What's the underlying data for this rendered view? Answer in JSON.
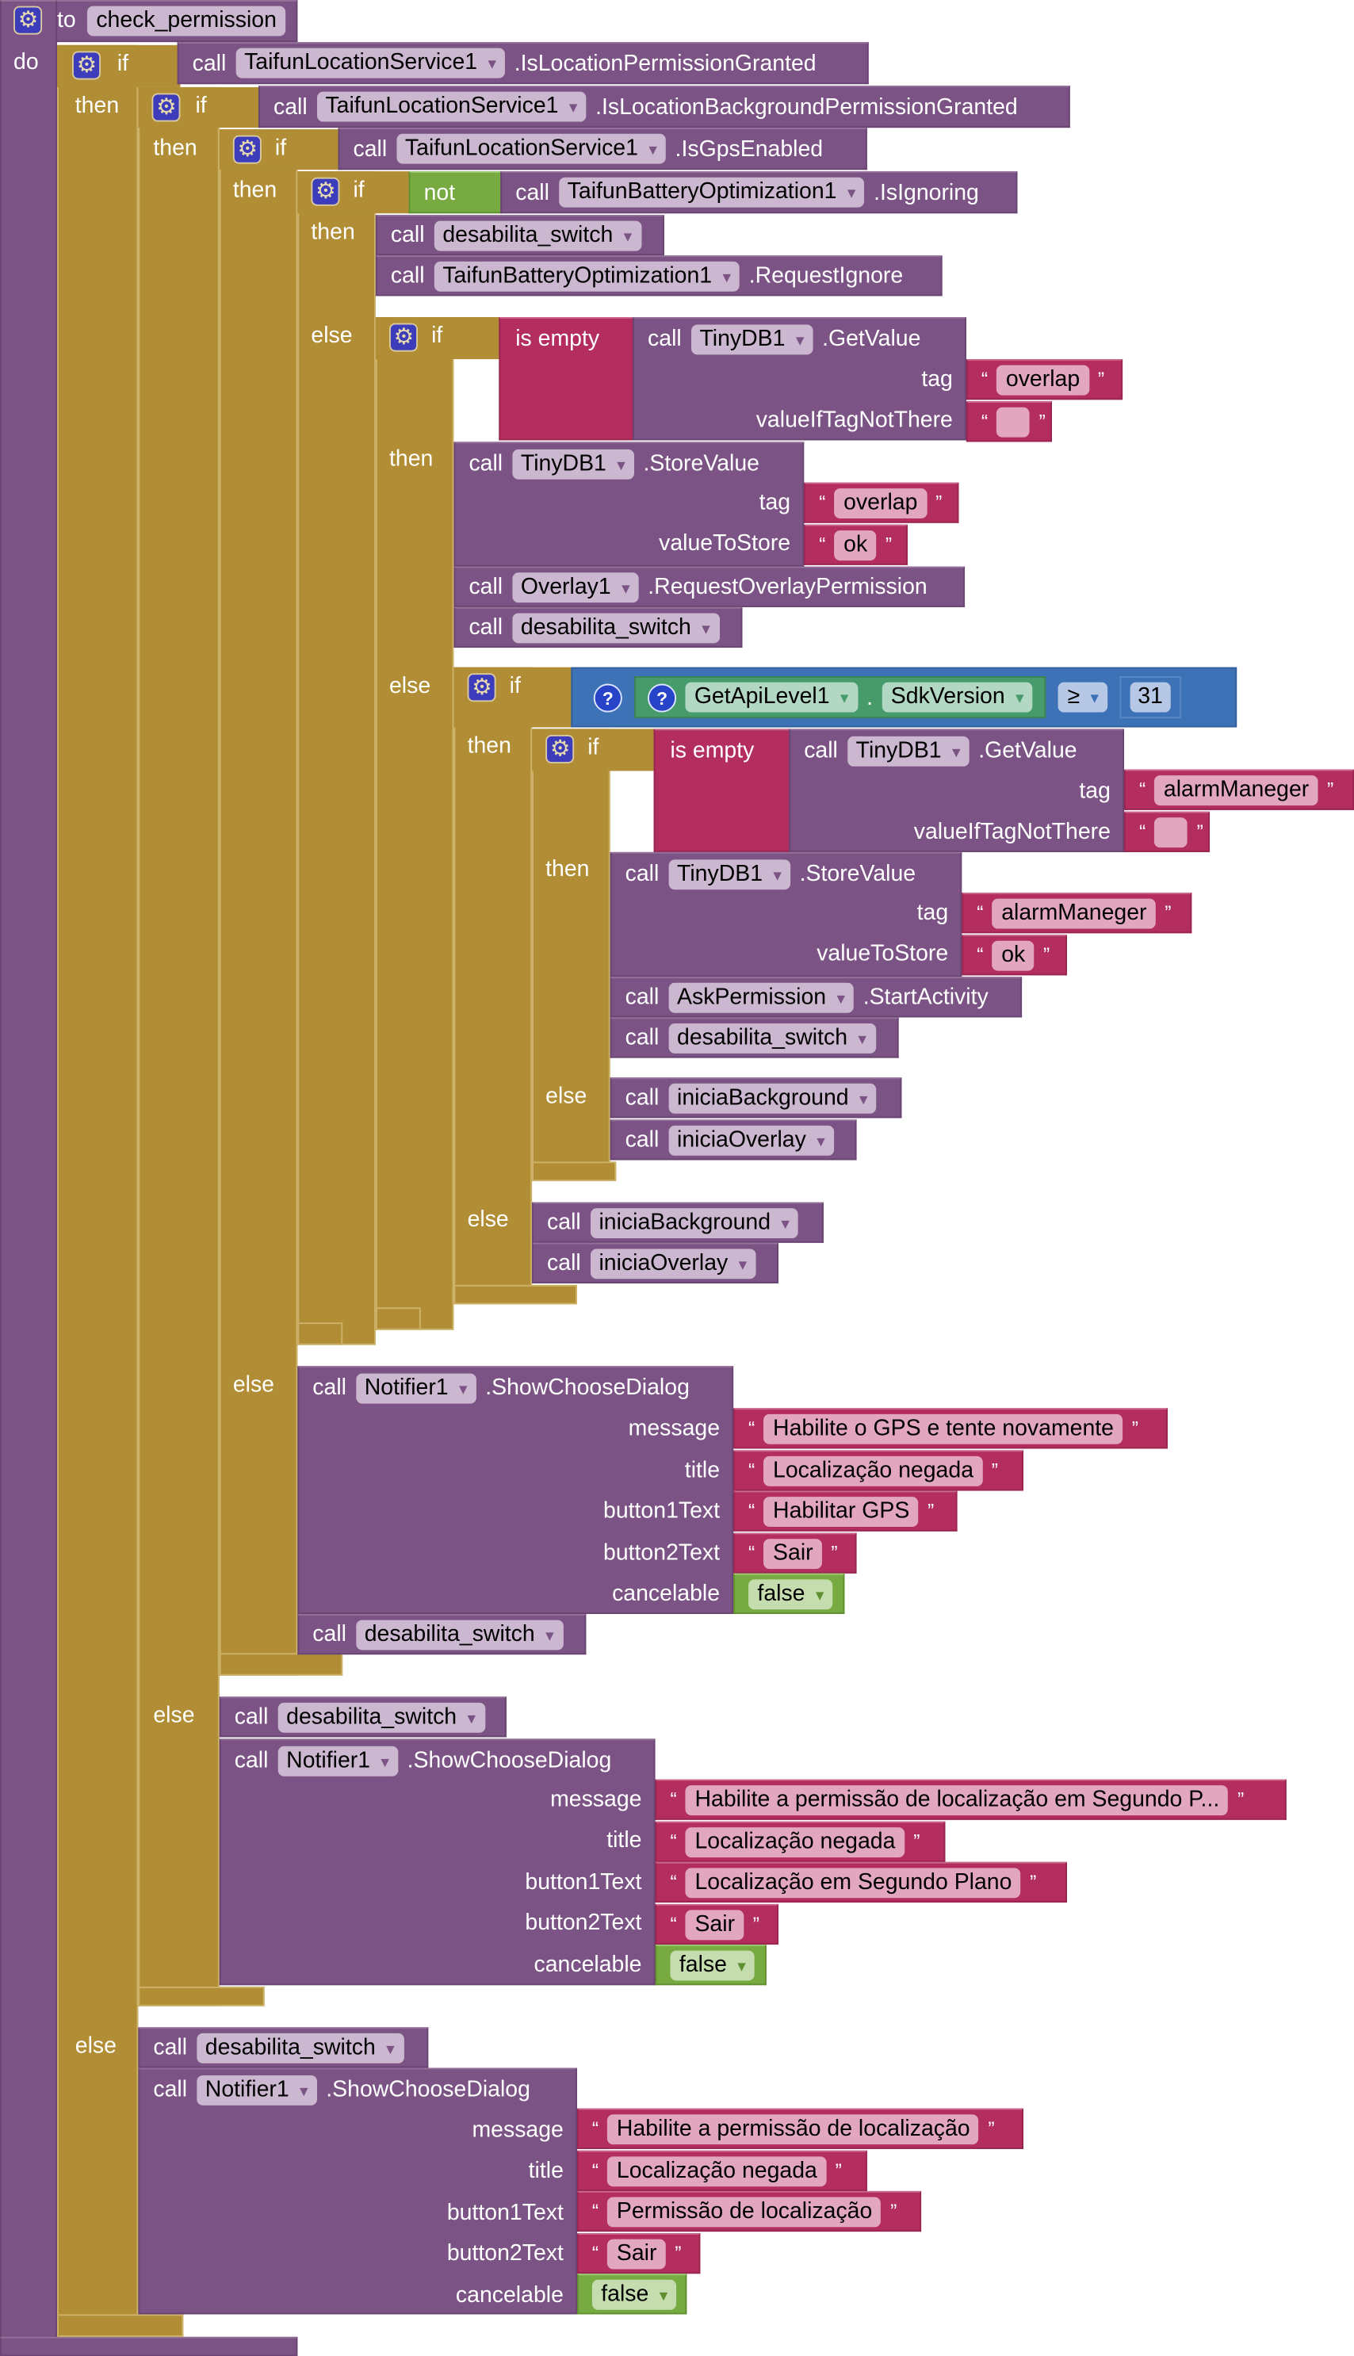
{
  "kw": {
    "to": "to",
    "do": "do",
    "if": "if",
    "then": "then",
    "else": "else",
    "call": "call",
    "not": "not",
    "is_empty": "is empty",
    "tag": "tag",
    "valueIfTagNotThere": "valueIfTagNotThere",
    "valueToStore": "valueToStore",
    "message": "message",
    "title": "title",
    "button1Text": "button1Text",
    "button2Text": "button2Text",
    "cancelable": "cancelable",
    "open_quote": "“",
    "close_quote": "”",
    "dot": "."
  },
  "colors": {
    "procedure": "#7b5385",
    "control": "#b18e35",
    "text": "#b32d5e",
    "logic": "#77ab41",
    "math": "#3e72b7",
    "component_property": "#479b6b"
  },
  "procedure": {
    "name": "check_permission"
  },
  "if1": {
    "condition": {
      "component": "TaifunLocationService1",
      "method": ".IsLocationPermissionGranted"
    }
  },
  "if2": {
    "condition": {
      "component": "TaifunLocationService1",
      "method": ".IsLocationBackgroundPermissionGranted"
    }
  },
  "if3": {
    "condition": {
      "component": "TaifunLocationService1",
      "method": ".IsGpsEnabled"
    }
  },
  "if4": {
    "condition": {
      "component": "TaifunBatteryOptimization1",
      "method": ".IsIgnoring"
    },
    "then": {
      "proc": "desabilita_switch",
      "request": {
        "component": "TaifunBatteryOptimization1",
        "method": ".RequestIgnore"
      }
    }
  },
  "if5": {
    "condition": {
      "component": "TinyDB1",
      "method": ".GetValue",
      "tag": "overlap",
      "valueIfTagNotThere": ""
    },
    "then": {
      "store": {
        "component": "TinyDB1",
        "method": ".StoreValue",
        "tag": "overlap",
        "valueToStore": "ok"
      },
      "overlay": {
        "component": "Overlay1",
        "method": ".RequestOverlayPermission"
      },
      "proc": "desabilita_switch"
    }
  },
  "if6": {
    "condition": {
      "component": "GetApiLevel1",
      "property": "SdkVersion",
      "operator": "≥",
      "value": "31"
    },
    "else": {
      "proc1": "iniciaBackground",
      "proc2": "iniciaOverlay"
    }
  },
  "if7": {
    "condition": {
      "component": "TinyDB1",
      "method": ".GetValue",
      "tag": "alarmManeger",
      "valueIfTagNotThere": ""
    },
    "then": {
      "store": {
        "component": "TinyDB1",
        "method": ".StoreValue",
        "tag": "alarmManeger",
        "valueToStore": "ok"
      },
      "ask": {
        "component": "AskPermission",
        "method": ".StartActivity"
      },
      "proc": "desabilita_switch"
    },
    "else": {
      "proc1": "iniciaBackground",
      "proc2": "iniciaOverlay"
    }
  },
  "if3_else": {
    "dialog": {
      "component": "Notifier1",
      "method": ".ShowChooseDialog",
      "message": "Habilite o GPS e tente novamente",
      "title": "Localização negada",
      "button1Text": "Habilitar GPS",
      "button2Text": "Sair",
      "cancelable": "false"
    },
    "proc": "desabilita_switch"
  },
  "if2_else": {
    "proc": "desabilita_switch",
    "dialog": {
      "component": "Notifier1",
      "method": ".ShowChooseDialog",
      "message": "Habilite a permissão de localização em Segundo P...",
      "title": "Localização negada",
      "button1Text": "Localização em Segundo Plano",
      "button2Text": "Sair",
      "cancelable": "false"
    }
  },
  "if1_else": {
    "proc": "desabilita_switch",
    "dialog": {
      "component": "Notifier1",
      "method": ".ShowChooseDialog",
      "message": "Habilite a permissão de localização",
      "title": "Localização negada",
      "button1Text": "Permissão de localização",
      "button2Text": "Sair",
      "cancelable": "false"
    }
  }
}
